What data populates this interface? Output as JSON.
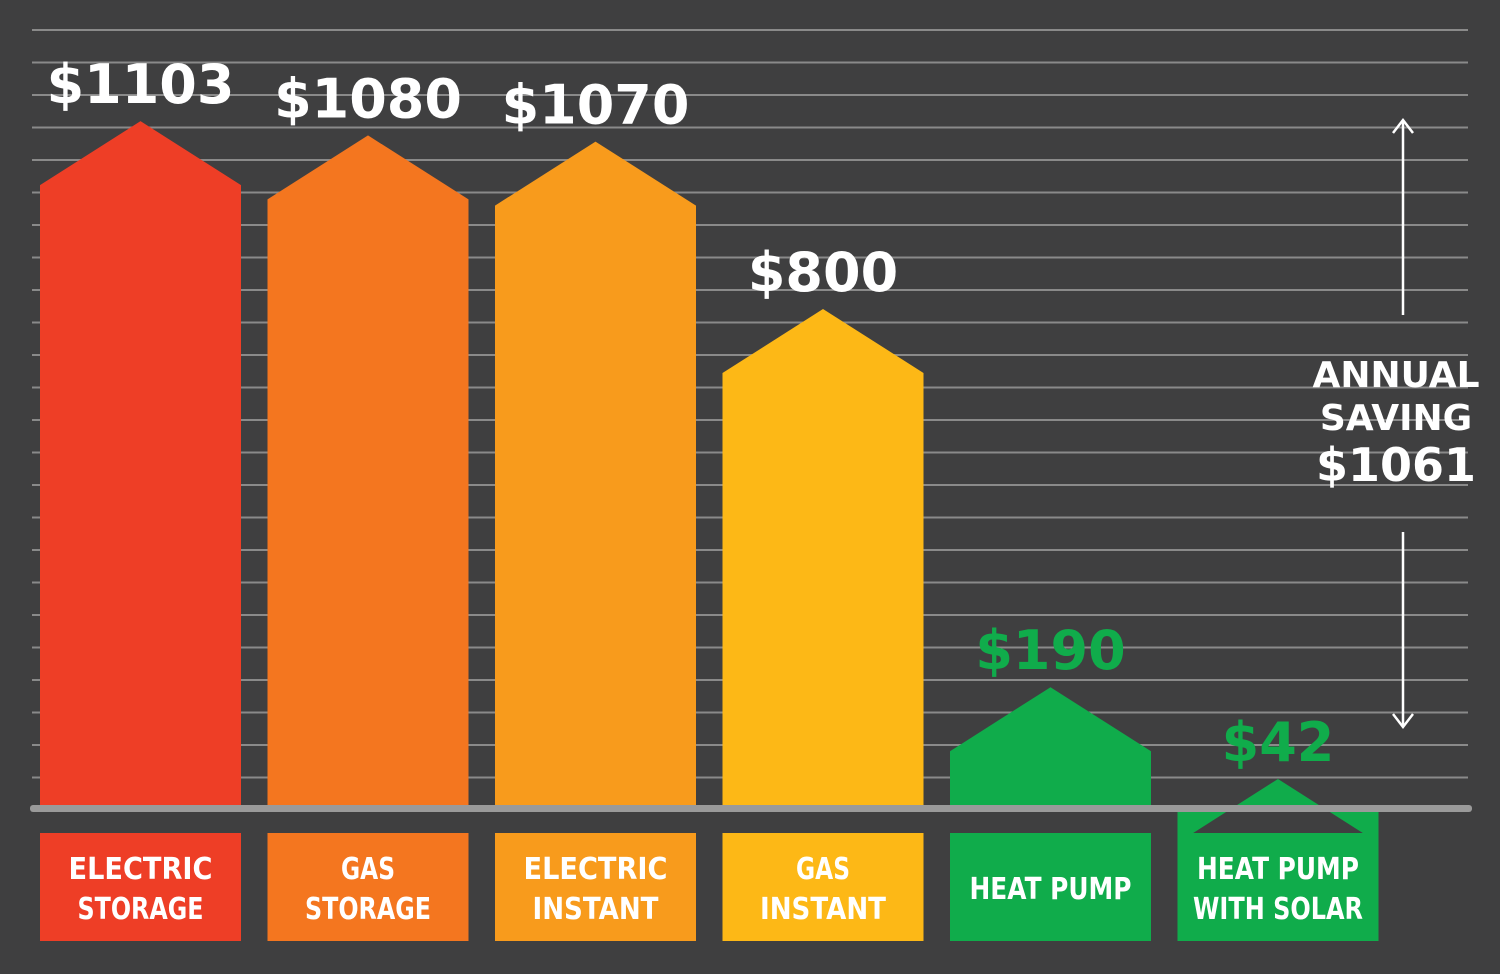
{
  "chart_data": {
    "type": "bar",
    "categories": [
      [
        "ELECTRIC",
        "STORAGE"
      ],
      [
        "GAS",
        "STORAGE"
      ],
      [
        "ELECTRIC",
        "INSTANT"
      ],
      [
        "GAS",
        "INSTANT"
      ],
      [
        "HEAT PUMP"
      ],
      [
        "HEAT PUMP",
        "WITH SOLAR"
      ]
    ],
    "values": [
      1103,
      1080,
      1070,
      800,
      190,
      42
    ],
    "value_labels": [
      "$1103",
      "$1080",
      "$1070",
      "$800",
      "$190",
      "$42"
    ],
    "colors": [
      "#ee3e26",
      "#f4761f",
      "#f89b1c",
      "#fdb816",
      "#10ac4b",
      "#10ac4b"
    ],
    "value_label_colors": [
      "#ffffff",
      "#ffffff",
      "#ffffff",
      "#ffffff",
      "#10ac4b",
      "#10ac4b"
    ],
    "ylim": [
      0,
      1250
    ],
    "grid": true,
    "annotation": {
      "lines": [
        "ANNUAL",
        "SAVING",
        "$1061"
      ],
      "color": "#ffffff"
    }
  },
  "colors": {
    "background": "#3f3f40",
    "gridline": "#8a8a8a",
    "baseline": "#9a9a9a"
  }
}
